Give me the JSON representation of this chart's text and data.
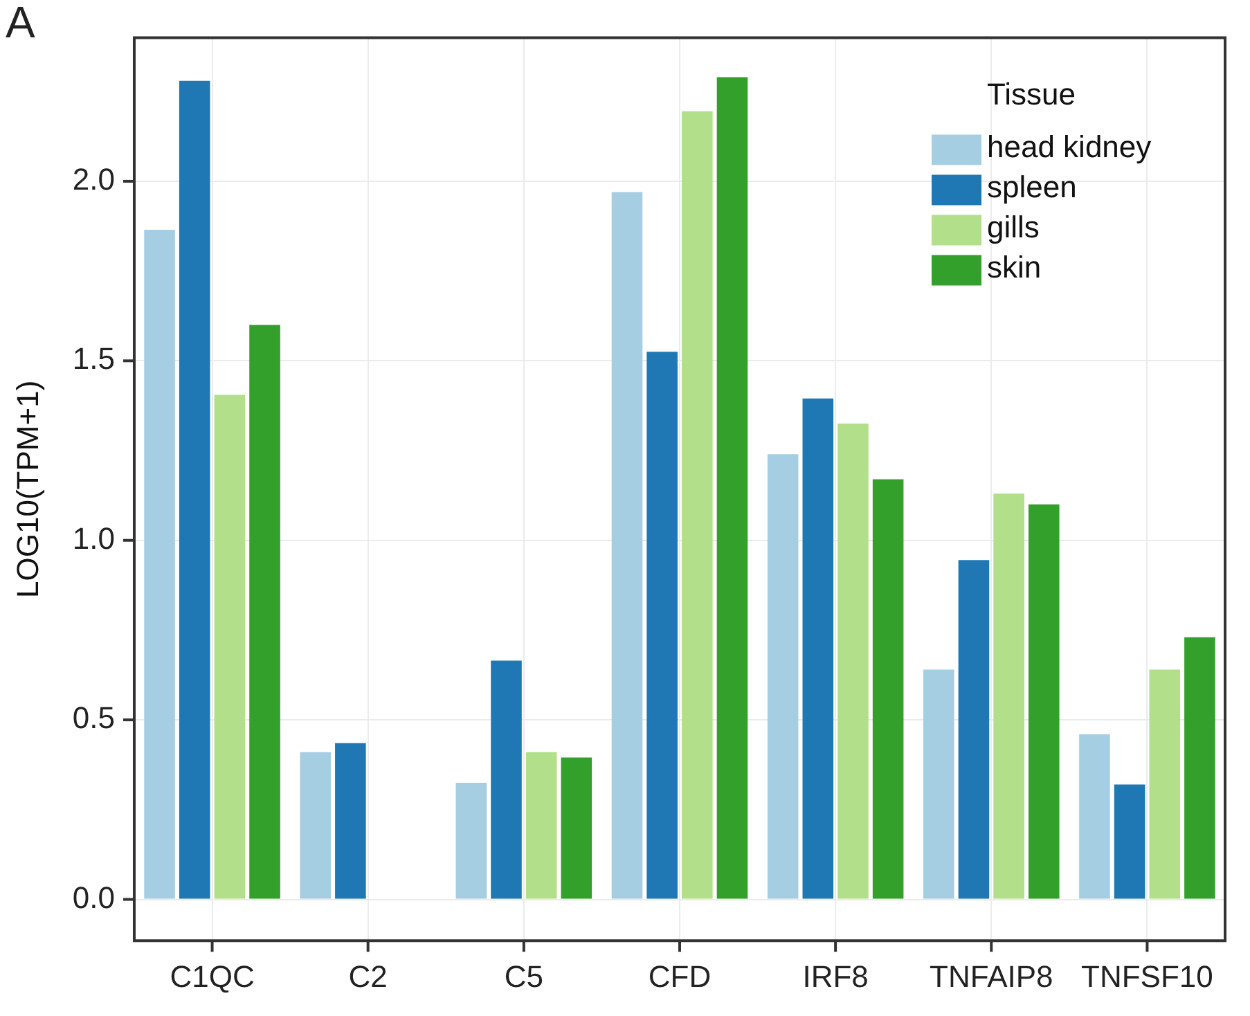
{
  "chart_data": {
    "type": "bar",
    "ylabel": "LOG10(TPM+1)",
    "legend_title": "Tissue",
    "annotations": [
      "A"
    ],
    "categories": [
      "C1QC",
      "C2",
      "C5",
      "CFD",
      "IRF8",
      "TNFAIP8",
      "TNFSF10"
    ],
    "series": [
      {
        "name": "head kidney",
        "color": "#a6cee3",
        "values": [
          1.865,
          0.41,
          0.325,
          1.97,
          1.24,
          0.64,
          0.46
        ]
      },
      {
        "name": "spleen",
        "color": "#1f78b4",
        "values": [
          2.28,
          0.435,
          0.665,
          1.525,
          1.395,
          0.945,
          0.32
        ]
      },
      {
        "name": "gills",
        "color": "#b2df8a",
        "values": [
          1.405,
          0,
          0.41,
          2.195,
          1.325,
          1.13,
          0.64
        ]
      },
      {
        "name": "skin",
        "color": "#33a02c",
        "values": [
          1.6,
          0,
          0.395,
          2.29,
          1.17,
          1.1,
          0.73
        ]
      }
    ],
    "ylim": [
      -0.115,
      2.4
    ],
    "yticks": [
      {
        "value": 0,
        "label": "0.0"
      },
      0.5,
      {
        "value": 1,
        "label": "1.0"
      },
      1.5,
      {
        "value": 2,
        "label": "2.0"
      }
    ],
    "grid": true,
    "legend": "top right"
  }
}
